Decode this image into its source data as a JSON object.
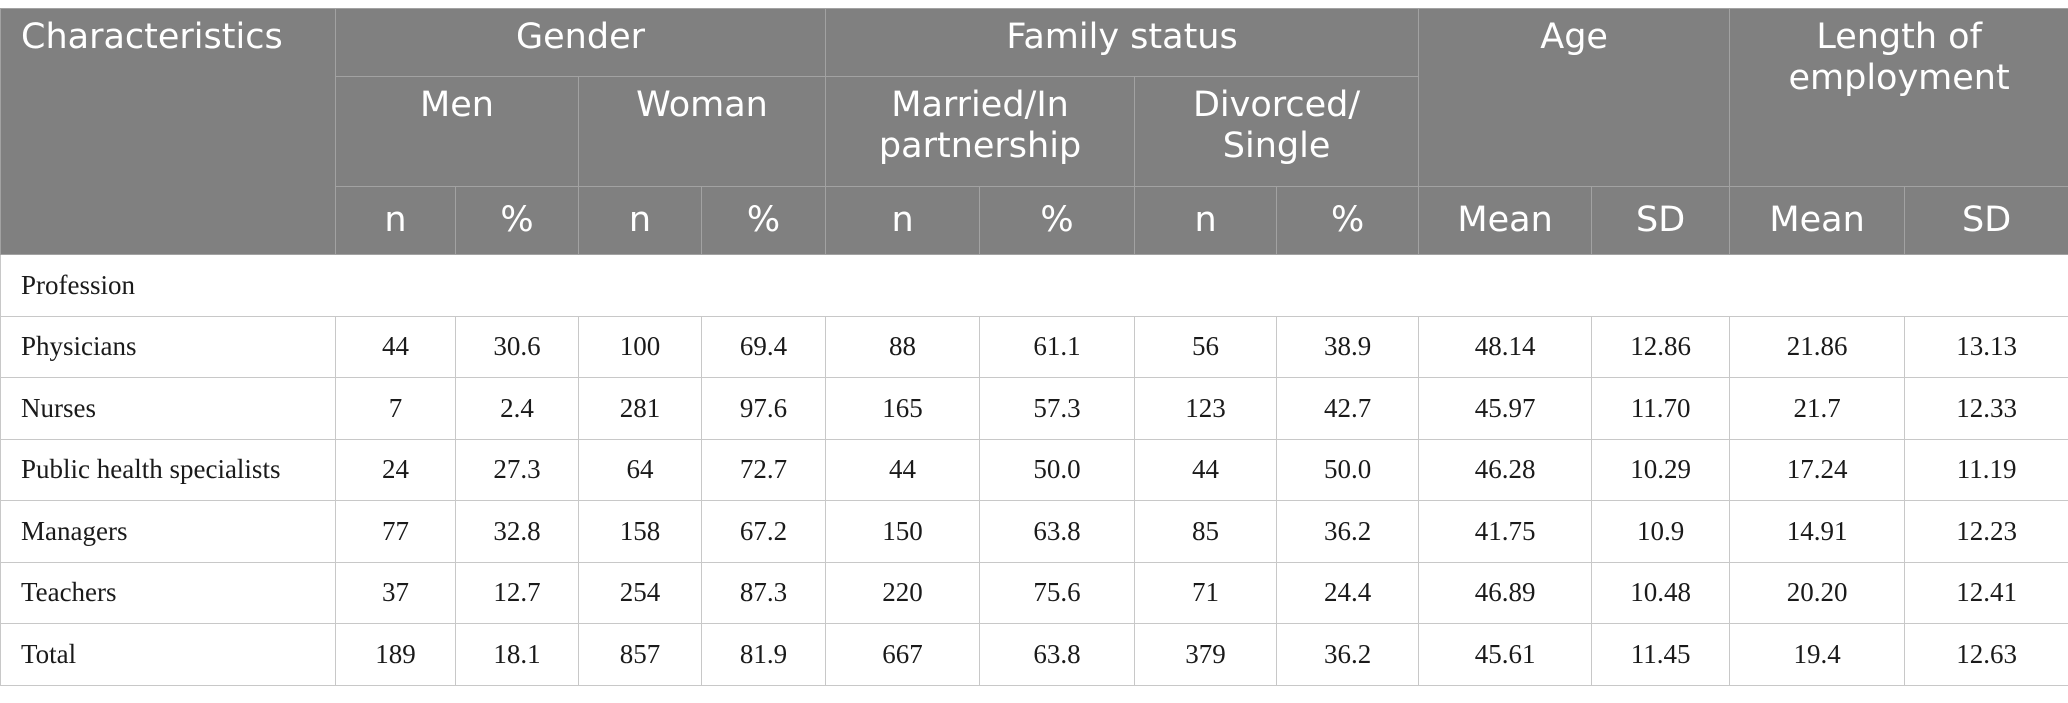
{
  "table": {
    "header": {
      "characteristics": "Characteristics",
      "gender": "Gender",
      "family_status": "Family status",
      "age": "Age",
      "length_of_employment": "Length of employment",
      "men": "Men",
      "woman": "Woman",
      "married": "Married/In partnership",
      "divorced": "Divorced/ Single",
      "n": "n",
      "pct": "%",
      "mean": "Mean",
      "sd": "SD"
    },
    "section_label": "Profession",
    "rows": [
      {
        "label": "Physicians",
        "values": [
          "44",
          "30.6",
          "100",
          "69.4",
          "88",
          "61.1",
          "56",
          "38.9",
          "48.14",
          "12.86",
          "21.86",
          "13.13"
        ]
      },
      {
        "label": "Nurses",
        "values": [
          "7",
          "2.4",
          "281",
          "97.6",
          "165",
          "57.3",
          "123",
          "42.7",
          "45.97",
          "11.70",
          "21.7",
          "12.33"
        ]
      },
      {
        "label": "Public health specialists",
        "values": [
          "24",
          "27.3",
          "64",
          "72.7",
          "44",
          "50.0",
          "44",
          "50.0",
          "46.28",
          "10.29",
          "17.24",
          "11.19"
        ]
      },
      {
        "label": "Managers",
        "values": [
          "77",
          "32.8",
          "158",
          "67.2",
          "150",
          "63.8",
          "85",
          "36.2",
          "41.75",
          "10.9",
          "14.91",
          "12.23"
        ]
      },
      {
        "label": "Teachers",
        "values": [
          "37",
          "12.7",
          "254",
          "87.3",
          "220",
          "75.6",
          "71",
          "24.4",
          "46.89",
          "10.48",
          "20.20",
          "12.41"
        ]
      },
      {
        "label": "Total",
        "values": [
          "189",
          "18.1",
          "857",
          "81.9",
          "667",
          "63.8",
          "379",
          "36.2",
          "45.61",
          "11.45",
          "19.4",
          "12.63"
        ]
      }
    ]
  },
  "colors": {
    "header_background": "#808080",
    "header_text": "#ffffff",
    "grid_line": "#c8c8c8"
  }
}
